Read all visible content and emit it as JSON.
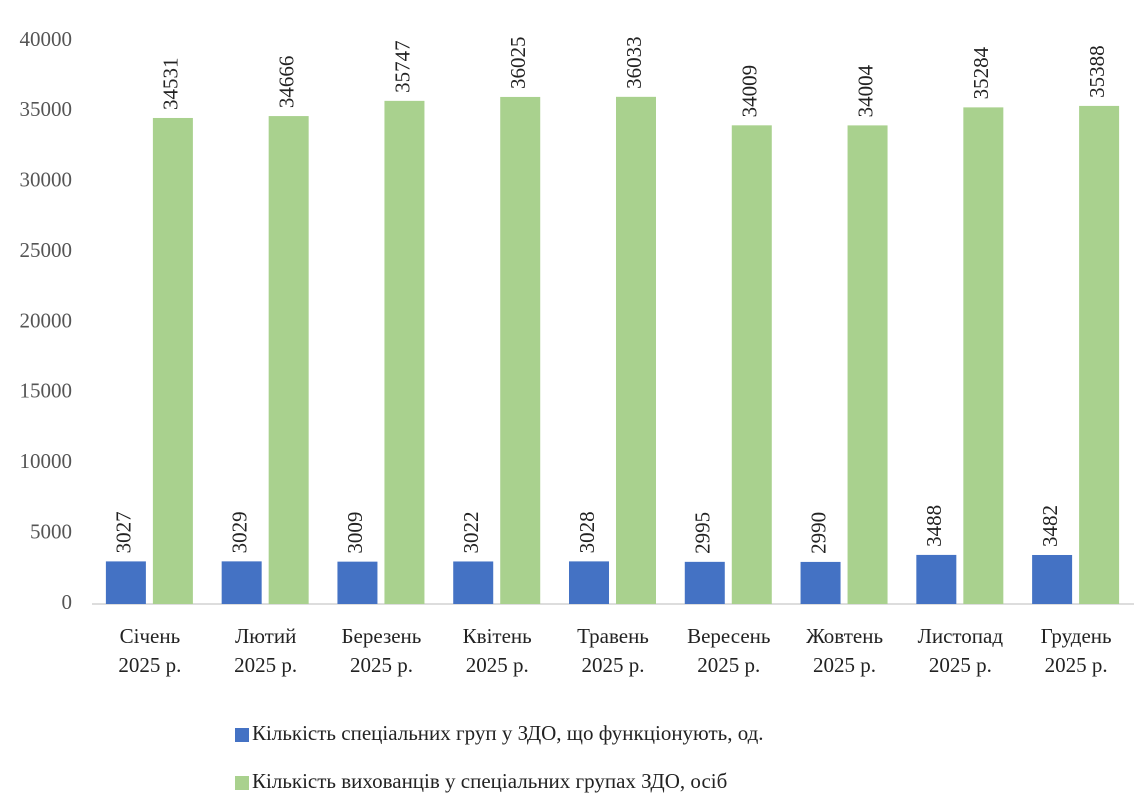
{
  "chart_data": {
    "type": "bar",
    "categories": [
      [
        "Січень",
        "2025 р."
      ],
      [
        "Лютий",
        "2025 р."
      ],
      [
        "Березень",
        "2025 р."
      ],
      [
        "Квітень",
        "2025 р."
      ],
      [
        "Травень",
        "2025 р."
      ],
      [
        "Вересень",
        "2025 р."
      ],
      [
        "Жовтень",
        "2025 р."
      ],
      [
        "Листопад",
        "2025 р."
      ],
      [
        "Грудень",
        "2025 р."
      ]
    ],
    "series": [
      {
        "name": "Кількість спеціальних груп у ЗДО, що функціонують, од.",
        "color": "#4472c4",
        "values": [
          3027,
          3029,
          3009,
          3022,
          3028,
          2995,
          2990,
          3488,
          3482
        ]
      },
      {
        "name": "Кількість вихованців у спеціальних групах ЗДО, осіб",
        "color": "#a9d18e",
        "values": [
          34531,
          34666,
          35747,
          36025,
          36033,
          34009,
          34004,
          35284,
          35388
        ]
      }
    ],
    "ylim": [
      0,
      40000
    ],
    "yticks": [
      0,
      5000,
      10000,
      15000,
      20000,
      25000,
      30000,
      35000,
      40000
    ],
    "grid": false,
    "legend": "bottom"
  }
}
